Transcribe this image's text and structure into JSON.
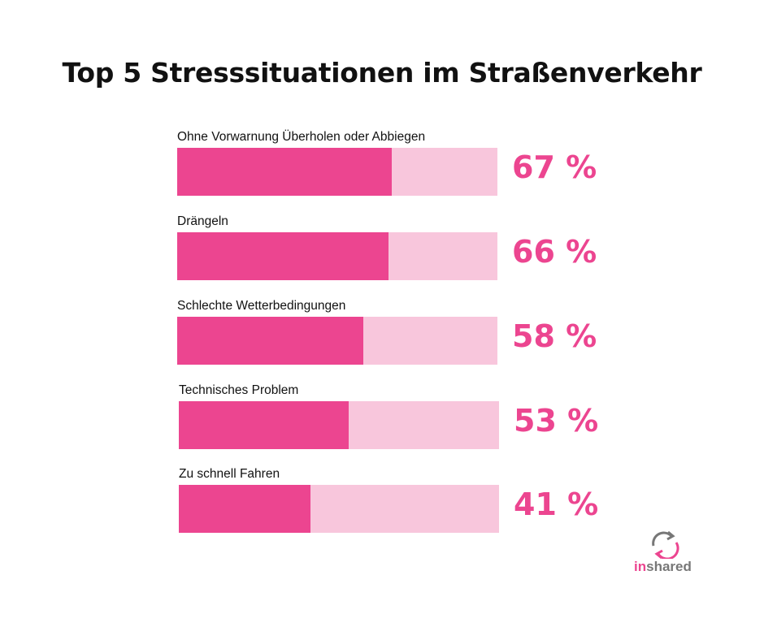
{
  "title": "Top 5 Stresssituationen im Straßenverkehr",
  "chart_data": {
    "type": "bar",
    "orientation": "horizontal",
    "title": "Top 5 Stresssituationen im Straßenverkehr",
    "categories": [
      "Ohne Vorwarnung Überholen oder Abbiegen",
      "Drängeln",
      "Schlechte Wetterbedingungen",
      "Technisches Problem",
      "Zu schnell Fahren"
    ],
    "values": [
      67,
      66,
      58,
      53,
      41
    ],
    "value_labels": [
      "67 %",
      "66 %",
      "58 %",
      "53 %",
      "41 %"
    ],
    "xlim": [
      0,
      100
    ],
    "xlabel": "",
    "ylabel": "",
    "grid": false,
    "colors": {
      "fill": "#ec4590",
      "track": "#f8c6dc"
    }
  },
  "logo": {
    "prefix": "in",
    "rest": "shared"
  }
}
